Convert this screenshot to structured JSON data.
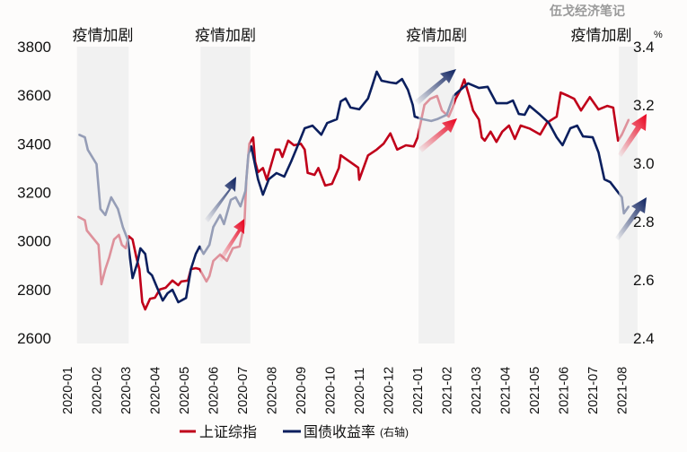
{
  "watermark": "伍戈经济笔记",
  "chart_data": {
    "type": "line",
    "title": "",
    "xlabel": "",
    "ylabel_left": "",
    "ylabel_right": "%",
    "ylim_left": [
      2600,
      3800
    ],
    "ylim_right": [
      2.4,
      3.4
    ],
    "yticks_left": [
      "3800",
      "3600",
      "3400",
      "3200",
      "3000",
      "2800",
      "2600"
    ],
    "yticks_right": [
      "3.4",
      "3.2",
      "3.0",
      "2.8",
      "2.6",
      "2.4"
    ],
    "xticks": [
      "2020-01",
      "2020-02",
      "2020-03",
      "2020-04",
      "2020-05",
      "2020-06",
      "2020-07",
      "2020-08",
      "2020-09",
      "2020-10",
      "2020-11",
      "2020-12",
      "2021-01",
      "2021-02",
      "2021-03",
      "2021-04",
      "2021-05",
      "2021-06",
      "2021-07",
      "2021-08"
    ],
    "grid": false,
    "legend_placement": "bottom",
    "shaded_periods": [
      {
        "label": "疫情加剧",
        "start": "2020-01-11",
        "end": "2020-03-04"
      },
      {
        "label": "疫情加剧",
        "start": "2020-05-18",
        "end": "2020-07-09"
      },
      {
        "label": "疫情加剧",
        "start": "2021-01-02",
        "end": "2021-02-09"
      },
      {
        "label": "疫情加剧",
        "start": "2021-07-28",
        "end": "2021-08-17"
      }
    ],
    "series": [
      {
        "name": "上证综指",
        "axis": "left",
        "color": "#c0001a",
        "x": [
          "2020-01-12",
          "2020-01-19",
          "2020-01-21",
          "2020-02-03",
          "2020-02-06",
          "2020-02-10",
          "2020-02-14",
          "2020-02-19",
          "2020-02-24",
          "2020-02-27",
          "2020-03-01",
          "2020-03-04",
          "2020-03-08",
          "2020-03-12",
          "2020-03-15",
          "2020-03-18",
          "2020-03-21",
          "2020-03-26",
          "2020-04-01",
          "2020-04-06",
          "2020-04-12",
          "2020-04-19",
          "2020-04-25",
          "2020-04-28",
          "2020-05-05",
          "2020-05-08",
          "2020-05-13",
          "2020-05-17",
          "2020-05-24",
          "2020-05-27",
          "2020-06-01",
          "2020-06-08",
          "2020-06-15",
          "2020-06-21",
          "2020-06-28",
          "2020-07-03",
          "2020-07-05",
          "2020-07-08",
          "2020-07-12",
          "2020-07-14",
          "2020-07-17",
          "2020-07-22",
          "2020-07-26",
          "2020-08-05",
          "2020-08-09",
          "2020-08-12",
          "2020-08-18",
          "2020-08-24",
          "2020-09-01",
          "2020-09-05",
          "2020-09-08",
          "2020-09-15",
          "2020-09-19",
          "2020-09-26",
          "2020-10-03",
          "2020-10-10",
          "2020-10-12",
          "2020-10-30",
          "2020-11-01",
          "2020-11-10",
          "2020-11-19",
          "2020-11-26",
          "2020-12-03",
          "2020-12-10",
          "2020-12-19",
          "2020-12-27",
          "2021-01-01",
          "2021-01-08",
          "2021-01-14",
          "2021-01-21",
          "2021-01-26",
          "2021-02-03",
          "2021-02-07",
          "2021-02-10",
          "2021-02-15",
          "2021-02-19",
          "2021-02-24",
          "2021-02-28",
          "2021-03-04",
          "2021-03-07",
          "2021-03-10",
          "2021-03-16",
          "2021-03-22",
          "2021-03-28",
          "2021-04-05",
          "2021-04-11",
          "2021-04-17",
          "2021-04-26",
          "2021-05-07",
          "2021-05-14",
          "2021-05-24",
          "2021-05-28",
          "2021-06-06",
          "2021-06-12",
          "2021-06-19",
          "2021-06-28",
          "2021-07-07",
          "2021-07-16",
          "2021-07-22",
          "2021-07-27",
          "2021-08-01",
          "2021-08-08"
        ],
        "y": [
          3100,
          3085,
          3043,
          2984,
          2822,
          2884,
          2932,
          3006,
          3025,
          2984,
          2970,
          3020,
          3006,
          2932,
          2884,
          2748,
          2718,
          2762,
          2766,
          2800,
          2807,
          2837,
          2818,
          2833,
          2837,
          2884,
          2888,
          2884,
          2833,
          2855,
          2918,
          2944,
          2918,
          2970,
          2977,
          3070,
          3252,
          3400,
          3426,
          3326,
          3283,
          3300,
          3252,
          3376,
          3376,
          3346,
          3413,
          3394,
          3400,
          3376,
          3280,
          3272,
          3300,
          3228,
          3235,
          3300,
          3353,
          3302,
          3252,
          3352,
          3376,
          3400,
          3443,
          3376,
          3394,
          3389,
          3426,
          3560,
          3585,
          3597,
          3537,
          3512,
          3549,
          3585,
          3622,
          3665,
          3597,
          3537,
          3500,
          3426,
          3413,
          3450,
          3408,
          3450,
          3475,
          3420,
          3475,
          3463,
          3438,
          3487,
          3512,
          3611,
          3597,
          3585,
          3537,
          3592,
          3541,
          3556,
          3549,
          3413,
          3438,
          3500
        ]
      },
      {
        "name": "国债收益率",
        "name_suffix": "(右轴)",
        "axis": "right",
        "color": "#0b1f5e",
        "x": [
          "2020-01-13",
          "2020-01-19",
          "2020-01-22",
          "2020-02-01",
          "2020-02-05",
          "2020-02-10",
          "2020-02-16",
          "2020-02-23",
          "2020-02-28",
          "2020-03-03",
          "2020-03-08",
          "2020-03-13",
          "2020-03-16",
          "2020-03-21",
          "2020-03-24",
          "2020-03-28",
          "2020-04-03",
          "2020-04-09",
          "2020-04-14",
          "2020-04-19",
          "2020-04-25",
          "2020-05-03",
          "2020-05-08",
          "2020-05-13",
          "2020-05-17",
          "2020-05-21",
          "2020-05-27",
          "2020-06-01",
          "2020-06-08",
          "2020-06-12",
          "2020-06-19",
          "2020-06-24",
          "2020-06-29",
          "2020-07-04",
          "2020-07-07",
          "2020-07-10",
          "2020-07-17",
          "2020-07-22",
          "2020-07-28",
          "2020-08-06",
          "2020-08-14",
          "2020-08-21",
          "2020-08-26",
          "2020-09-05",
          "2020-09-13",
          "2020-09-22",
          "2020-09-28",
          "2020-10-08",
          "2020-10-12",
          "2020-10-17",
          "2020-10-22",
          "2020-11-01",
          "2020-11-10",
          "2020-11-14",
          "2020-11-19",
          "2020-11-24",
          "2020-12-03",
          "2020-12-09",
          "2020-12-15",
          "2020-12-21",
          "2020-12-26",
          "2020-12-28",
          "2021-01-06",
          "2021-01-15",
          "2021-01-21",
          "2021-01-31",
          "2021-02-08",
          "2021-02-12",
          "2021-02-23",
          "2021-03-04",
          "2021-03-13",
          "2021-03-22",
          "2021-04-03",
          "2021-04-09",
          "2021-04-15",
          "2021-04-21",
          "2021-04-26",
          "2021-05-06",
          "2021-05-16",
          "2021-05-24",
          "2021-05-30",
          "2021-06-08",
          "2021-06-15",
          "2021-06-21",
          "2021-07-01",
          "2021-07-07",
          "2021-07-13",
          "2021-07-19",
          "2021-07-26",
          "2021-07-31",
          "2021-08-03",
          "2021-08-08"
        ],
        "y": [
          3.098,
          3.089,
          3.046,
          2.997,
          2.843,
          2.822,
          2.883,
          2.843,
          2.781,
          2.738,
          2.606,
          2.658,
          2.708,
          2.689,
          2.628,
          2.615,
          2.575,
          2.529,
          2.554,
          2.566,
          2.523,
          2.538,
          2.637,
          2.689,
          2.714,
          2.689,
          2.72,
          2.781,
          2.822,
          2.791,
          2.874,
          2.883,
          2.852,
          2.905,
          3.028,
          3.058,
          2.945,
          2.892,
          2.945,
          2.966,
          2.954,
          3.006,
          3.046,
          3.12,
          3.129,
          3.098,
          3.138,
          3.151,
          3.212,
          3.222,
          3.191,
          3.185,
          3.222,
          3.262,
          3.314,
          3.283,
          3.277,
          3.274,
          3.289,
          3.252,
          3.2,
          3.16,
          3.151,
          3.145,
          3.151,
          3.166,
          3.231,
          3.243,
          3.274,
          3.258,
          3.262,
          3.206,
          3.206,
          3.215,
          3.169,
          3.166,
          3.197,
          3.169,
          3.138,
          3.089,
          3.062,
          3.12,
          3.129,
          3.092,
          3.089,
          3.037,
          2.945,
          2.935,
          2.905,
          2.883,
          2.828,
          2.852
        ]
      }
    ]
  }
}
